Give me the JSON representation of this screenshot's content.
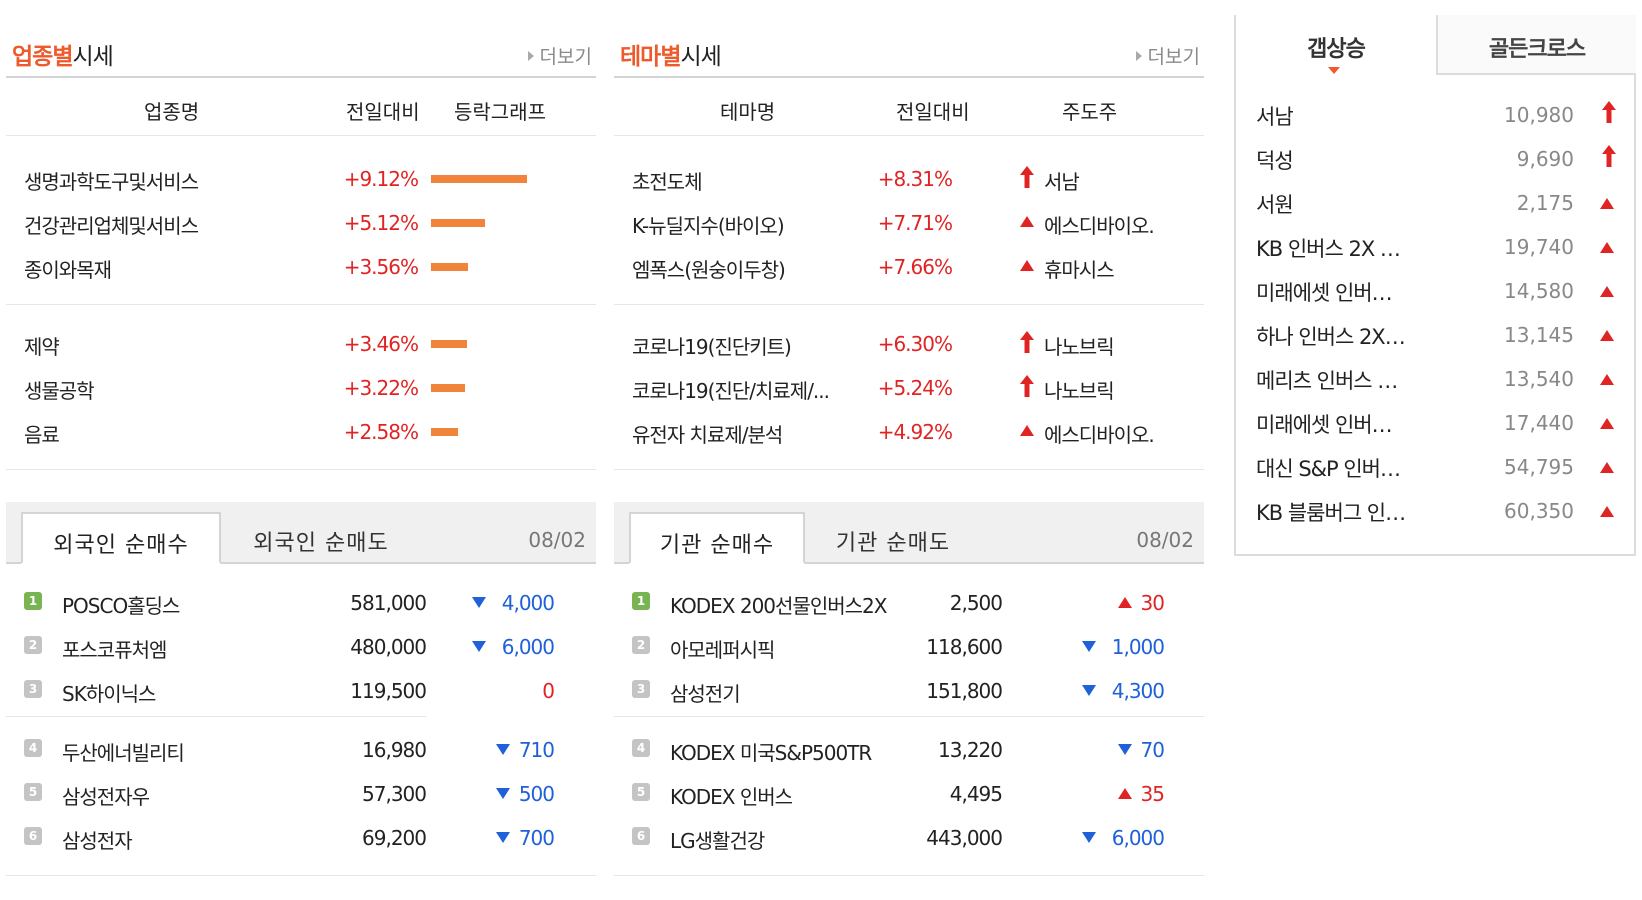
{
  "sector": {
    "title_accent": "업종별",
    "title_rest": "시세",
    "more": "더보기",
    "headers": [
      "업종명",
      "전일대비",
      "등락그래프"
    ],
    "rows": [
      {
        "name": "생명과학도구및서비스",
        "rate": "+9.12%",
        "value": 9.12
      },
      {
        "name": "건강관리업체및서비스",
        "rate": "+5.12%",
        "value": 5.12
      },
      {
        "name": "종이와목재",
        "rate": "+3.56%",
        "value": 3.56
      },
      {
        "name": "제약",
        "rate": "+3.46%",
        "value": 3.46
      },
      {
        "name": "생물공학",
        "rate": "+3.22%",
        "value": 3.22
      },
      {
        "name": "음료",
        "rate": "+2.58%",
        "value": 2.58
      }
    ]
  },
  "theme": {
    "title_accent": "테마별",
    "title_rest": "시세",
    "more": "더보기",
    "headers": [
      "테마명",
      "전일대비",
      "주도주"
    ],
    "rows": [
      {
        "name": "초전도체",
        "rate": "+8.31%",
        "icon": "upper-limit-arrow-icon",
        "leader": "서남"
      },
      {
        "name": "K-뉴딜지수(바이오)",
        "rate": "+7.71%",
        "icon": "up-triangle-icon",
        "leader": "에스디바이오."
      },
      {
        "name": "엠폭스(원숭이두창)",
        "rate": "+7.66%",
        "icon": "up-triangle-icon",
        "leader": "휴마시스"
      },
      {
        "name": "코로나19(진단키트)",
        "rate": "+6.30%",
        "icon": "upper-limit-arrow-icon",
        "leader": "나노브릭"
      },
      {
        "name": "코로나19(진단/치료제/...",
        "rate": "+5.24%",
        "icon": "upper-limit-arrow-icon",
        "leader": "나노브릭"
      },
      {
        "name": "유전자 치료제/분석",
        "rate": "+4.92%",
        "icon": "up-triangle-icon",
        "leader": "에스디바이오."
      }
    ]
  },
  "foreign": {
    "tab_buy": "외국인 순매수",
    "tab_sell": "외국인 순매도",
    "date": "08/02",
    "rows": [
      {
        "rank": "1",
        "name": "POSCO홀딩스",
        "price": "581,000",
        "dir": "down",
        "change": "4,000"
      },
      {
        "rank": "2",
        "name": "포스코퓨처엠",
        "price": "480,000",
        "dir": "down",
        "change": "6,000"
      },
      {
        "rank": "3",
        "name": "SK하이닉스",
        "price": "119,500",
        "dir": "flat",
        "change": "0"
      },
      {
        "rank": "4",
        "name": "두산에너빌리티",
        "price": "16,980",
        "dir": "down",
        "change": "710"
      },
      {
        "rank": "5",
        "name": "삼성전자우",
        "price": "57,300",
        "dir": "down",
        "change": "500"
      },
      {
        "rank": "6",
        "name": "삼성전자",
        "price": "69,200",
        "dir": "down",
        "change": "700"
      }
    ]
  },
  "institution": {
    "tab_buy": "기관 순매수",
    "tab_sell": "기관 순매도",
    "date": "08/02",
    "rows": [
      {
        "rank": "1",
        "name": "KODEX 200선물인버스2X",
        "price": "2,500",
        "dir": "up",
        "change": "30"
      },
      {
        "rank": "2",
        "name": "아모레퍼시픽",
        "price": "118,600",
        "dir": "down",
        "change": "1,000"
      },
      {
        "rank": "3",
        "name": "삼성전기",
        "price": "151,800",
        "dir": "down",
        "change": "4,300"
      },
      {
        "rank": "4",
        "name": "KODEX 미국S&P500TR",
        "price": "13,220",
        "dir": "down",
        "change": "70"
      },
      {
        "rank": "5",
        "name": "KODEX 인버스",
        "price": "4,495",
        "dir": "up",
        "change": "35"
      },
      {
        "rank": "6",
        "name": "LG생활건강",
        "price": "443,000",
        "dir": "down",
        "change": "6,000"
      }
    ]
  },
  "side": {
    "tab_active": "갭상승",
    "tab_inactive": "골든크로스",
    "rows": [
      {
        "name": "서남",
        "price": "10,980",
        "icon": "upper-limit-arrow-icon"
      },
      {
        "name": "덕성",
        "price": "9,690",
        "icon": "upper-limit-arrow-icon"
      },
      {
        "name": "서원",
        "price": "2,175",
        "icon": "up-triangle-icon"
      },
      {
        "name": "KB 인버스 2X …",
        "price": "19,740",
        "icon": "up-triangle-icon"
      },
      {
        "name": "미래에셋 인버…",
        "price": "14,580",
        "icon": "up-triangle-icon"
      },
      {
        "name": "하나 인버스 2X…",
        "price": "13,145",
        "icon": "up-triangle-icon"
      },
      {
        "name": "메리츠 인버스 …",
        "price": "13,540",
        "icon": "up-triangle-icon"
      },
      {
        "name": "미래에셋 인버…",
        "price": "17,440",
        "icon": "up-triangle-icon"
      },
      {
        "name": "대신 S&P 인버…",
        "price": "54,795",
        "icon": "up-triangle-icon"
      },
      {
        "name": "KB 블룸버그 인…",
        "price": "60,350",
        "icon": "up-triangle-icon"
      }
    ]
  },
  "colors": {
    "accent": "#ee5a2c",
    "up": "#e02424",
    "down": "#2060d8",
    "bar": "#f0843a",
    "rank_first": "#79b452"
  }
}
